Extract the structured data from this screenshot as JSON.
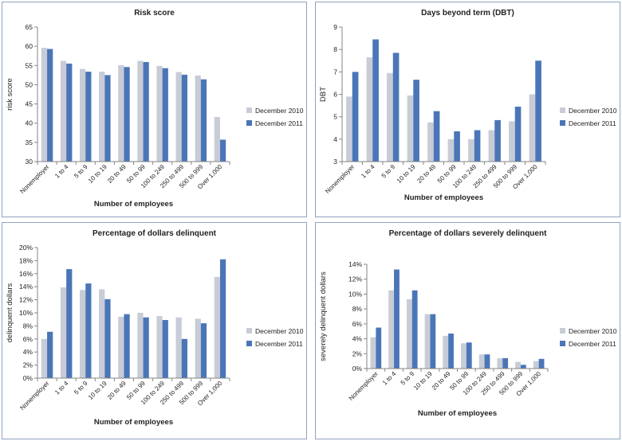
{
  "colors": {
    "series2010": "#c8ccd6",
    "series2011": "#4a76b8",
    "axis": "#868686",
    "border": "#8fa3c0"
  },
  "chart_data": [
    {
      "type": "bar",
      "title": "Risk score",
      "xlabel": "Number of employees",
      "ylabel": "risk score",
      "ylim": [
        30,
        65
      ],
      "yticks": [
        "30",
        "35",
        "40",
        "45",
        "50",
        "55",
        "60",
        "65"
      ],
      "categories": [
        "Nonemployer",
        "1 to 4",
        "5 to 9",
        "10 to 19",
        "20 to 49",
        "50 to 99",
        "100 to 249",
        "250 to 499",
        "500 to 999",
        "Over 1,000"
      ],
      "series": [
        {
          "name": "December 2010",
          "values": [
            59.6,
            56.2,
            54.1,
            53.4,
            55.1,
            56.2,
            54.9,
            53.3,
            52.4,
            41.6
          ]
        },
        {
          "name": "December 2011",
          "values": [
            59.3,
            55.5,
            53.4,
            52.5,
            54.6,
            55.9,
            54.3,
            52.6,
            51.4,
            35.7
          ]
        }
      ],
      "legend": "right",
      "grid": false
    },
    {
      "type": "bar",
      "title": "Days beyond term (DBT)",
      "xlabel": "Number of employees",
      "ylabel": "DBT",
      "ylim": [
        3,
        9
      ],
      "yticks": [
        "3",
        "4",
        "5",
        "6",
        "7",
        "8",
        "9"
      ],
      "categories": [
        "Nonemployer",
        "1 to 4",
        "5 to 9",
        "10 to 19",
        "20 to 49",
        "50 to 99",
        "100 to 249",
        "250 to 499",
        "500 to 999",
        "Over 1,000"
      ],
      "series": [
        {
          "name": "December 2010",
          "values": [
            5.9,
            7.65,
            6.95,
            5.95,
            4.75,
            4.0,
            4.0,
            4.4,
            4.8,
            6.0
          ]
        },
        {
          "name": "December 2011",
          "values": [
            7.0,
            8.45,
            7.85,
            6.65,
            5.25,
            4.35,
            4.4,
            4.85,
            5.45,
            7.5
          ]
        }
      ],
      "legend": "right",
      "grid": false
    },
    {
      "type": "bar",
      "title": "Percentage of dollars delinquent",
      "xlabel": "Number of employees",
      "ylabel": "delinquent dollars",
      "ylim": [
        0,
        20
      ],
      "yticks": [
        "0%",
        "2%",
        "4%",
        "6%",
        "8%",
        "10%",
        "12%",
        "14%",
        "16%",
        "18%",
        "20%"
      ],
      "categories": [
        "Nonemployer",
        "1 to 4",
        "5 to 9",
        "10 to 19",
        "20 to 49",
        "50 to 99",
        "100 to 249",
        "250 to 499",
        "500 to 999",
        "Over 1,000"
      ],
      "series": [
        {
          "name": "December 2010",
          "values": [
            6.0,
            13.9,
            13.5,
            13.6,
            9.4,
            10.0,
            9.5,
            9.3,
            9.1,
            15.5
          ]
        },
        {
          "name": "December 2011",
          "values": [
            7.1,
            16.7,
            14.5,
            12.1,
            9.8,
            9.3,
            8.9,
            6.0,
            8.4,
            18.2
          ]
        }
      ],
      "legend": "right",
      "grid": false
    },
    {
      "type": "bar",
      "title": "Percentage of dollars severely delinquent",
      "xlabel": "Number of employees",
      "ylabel": "severely delinquent dollars",
      "ylim": [
        0,
        14
      ],
      "yticks": [
        "0%",
        "2%",
        "4%",
        "6%",
        "8%",
        "10%",
        "12%",
        "14%"
      ],
      "categories": [
        "Nonemployer",
        "1 to 4",
        "5 to 9",
        "10 to 19",
        "20 to 49",
        "50 to 99",
        "100 to 249",
        "250 to 499",
        "500 to 999",
        "Over 1,000"
      ],
      "series": [
        {
          "name": "December 2010",
          "values": [
            4.2,
            10.5,
            9.3,
            7.3,
            4.4,
            3.4,
            1.9,
            1.4,
            0.9,
            1.0
          ]
        },
        {
          "name": "December 2011",
          "values": [
            5.5,
            13.3,
            10.5,
            7.3,
            4.7,
            3.5,
            1.9,
            1.4,
            0.5,
            1.3
          ]
        }
      ],
      "legend": "right",
      "grid": false
    }
  ]
}
